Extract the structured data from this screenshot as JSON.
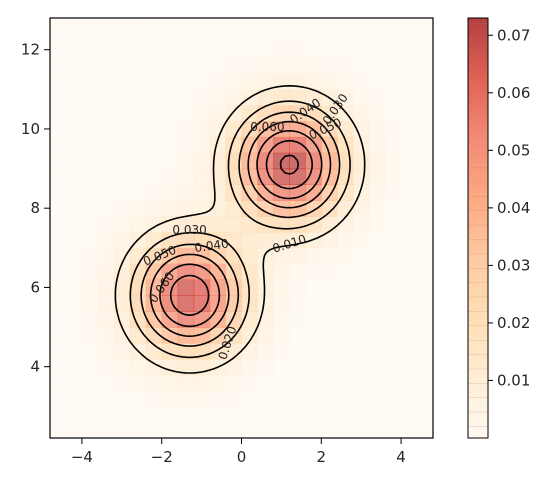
{
  "chart_data": {
    "type": "heatmap",
    "subtype": "2d-density-histogram-with-contours",
    "title": "",
    "xlabel": "",
    "ylabel": "",
    "xlim": [
      -4.8,
      4.8
    ],
    "ylim": [
      2.2,
      12.8
    ],
    "xticks": [
      -4,
      -2,
      0,
      2,
      4
    ],
    "xtick_labels": [
      "−4",
      "−2",
      "0",
      "2",
      "4"
    ],
    "yticks": [
      4,
      6,
      8,
      10,
      12
    ],
    "ytick_labels": [
      "4",
      "6",
      "8",
      "10",
      "12"
    ],
    "colormap": "OrRd",
    "colormap_alpha": 0.6,
    "colorbar": {
      "range": [
        0,
        0.073
      ],
      "ticks": [
        0.01,
        0.02,
        0.03,
        0.04,
        0.05,
        0.06,
        0.07
      ],
      "tick_labels": [
        "0.01",
        "0.02",
        "0.03",
        "0.04",
        "0.05",
        "0.06",
        "0.07"
      ]
    },
    "density_components": [
      {
        "center": [
          -1.3,
          5.8
        ],
        "sigma": [
          0.95,
          1.0
        ],
        "peak": 0.068
      },
      {
        "center": [
          1.2,
          9.1
        ],
        "sigma": [
          0.95,
          1.0
        ],
        "peak": 0.072
      }
    ],
    "contour_levels": [
      0.01,
      0.02,
      0.03,
      0.04,
      0.05,
      0.06,
      0.07
    ],
    "contour_labels": [
      {
        "text": "0.010",
        "x": 1.2,
        "y": 7.1,
        "angle": -18
      },
      {
        "text": "0.020",
        "x": -0.35,
        "y": 4.6,
        "angle": -72
      },
      {
        "text": "0.030",
        "x": -1.3,
        "y": 7.45,
        "angle": 0
      },
      {
        "text": "0.040",
        "x": -0.75,
        "y": 7.05,
        "angle": -8
      },
      {
        "text": "0.050",
        "x": -2.05,
        "y": 6.8,
        "angle": -22
      },
      {
        "text": "0.060",
        "x": -2.0,
        "y": 6.0,
        "angle": -55
      },
      {
        "text": "0.030",
        "x": 2.35,
        "y": 10.5,
        "angle": -55
      },
      {
        "text": "0.040",
        "x": 1.6,
        "y": 10.45,
        "angle": -35
      },
      {
        "text": "0.050",
        "x": 2.1,
        "y": 10.0,
        "angle": -25
      },
      {
        "text": "0.060",
        "x": 0.65,
        "y": 10.05,
        "angle": 0
      }
    ],
    "grid": false,
    "legend": "none"
  }
}
